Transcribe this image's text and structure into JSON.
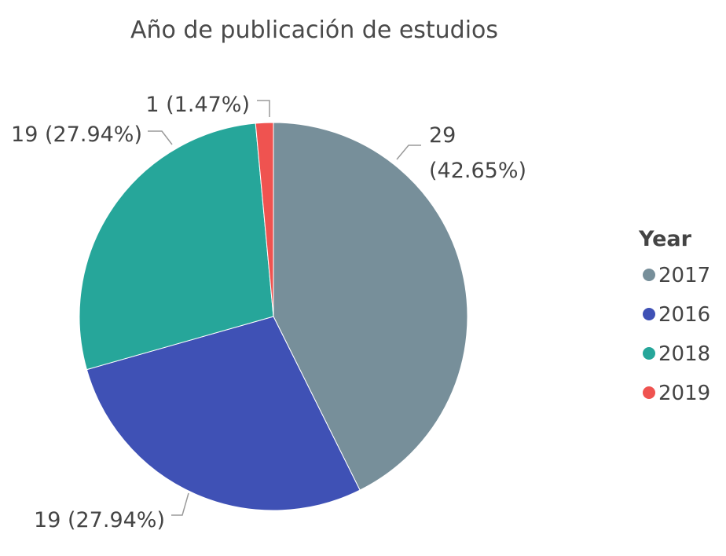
{
  "chart_data": {
    "type": "pie",
    "title": "Año de publicación de estudios",
    "legend_title": "Year",
    "legend_position": "right",
    "slices": [
      {
        "label": "2017",
        "value": 29,
        "percent": "42.65%",
        "color": "#778f9a",
        "data_label": "29 (42.65%)",
        "data_label_lines": [
          "29",
          "(42.65%)"
        ]
      },
      {
        "label": "2016",
        "value": 19,
        "percent": "27.94%",
        "color": "#3f51b5",
        "data_label": "19 (27.94%)",
        "data_label_lines": [
          "19 (27.94%)"
        ]
      },
      {
        "label": "2018",
        "value": 19,
        "percent": "27.94%",
        "color": "#26a69a",
        "data_label": "19 (27.94%)",
        "data_label_lines": [
          "19 (27.94%)"
        ]
      },
      {
        "label": "2019",
        "value": 1,
        "percent": "1.47%",
        "color": "#ef5350",
        "data_label": "1 (1.47%)",
        "data_label_lines": [
          "1 (1.47%)"
        ]
      }
    ]
  }
}
